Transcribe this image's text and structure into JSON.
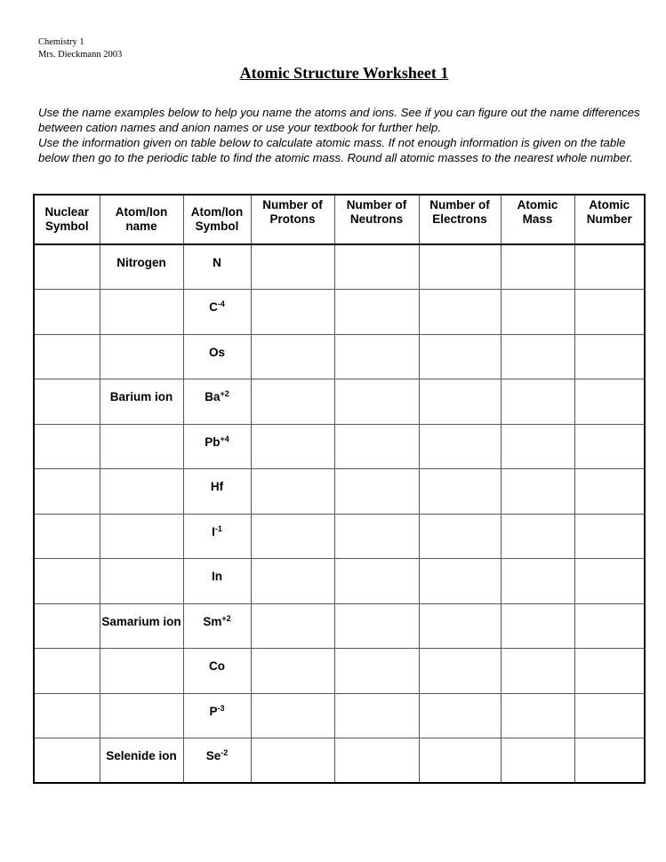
{
  "header": {
    "course": "Chemistry 1",
    "teacher": "Mrs. Dieckmann 2003"
  },
  "title": "Atomic Structure Worksheet 1",
  "instructions": [
    "Use the name examples below to help you name the atoms and ions.  See if you can figure out the name differences between cation names and anion names or use your textbook for further help.",
    "Use the information given on table below  to calculate atomic mass.  If not enough information is given on the table below then go to the periodic table to find the atomic mass.  Round all atomic masses to the nearest whole number."
  ],
  "table": {
    "columns": [
      "Nuclear Symbol",
      "Atom/Ion name",
      "Atom/Ion Symbol",
      "Number of Protons",
      "Number of Neutrons",
      "Number of Electrons",
      "Atomic Mass",
      "Atomic Number"
    ],
    "rows": [
      {
        "name": "Nitrogen",
        "symbol": "N",
        "charge": ""
      },
      {
        "name": "",
        "symbol": "C",
        "charge": "-4"
      },
      {
        "name": "",
        "symbol": "Os",
        "charge": ""
      },
      {
        "name": "Barium ion",
        "symbol": "Ba",
        "charge": "+2"
      },
      {
        "name": "",
        "symbol": "Pb",
        "charge": "+4"
      },
      {
        "name": "",
        "symbol": "Hf",
        "charge": ""
      },
      {
        "name": "",
        "symbol": "I",
        "charge": "-1"
      },
      {
        "name": "",
        "symbol": "In",
        "charge": ""
      },
      {
        "name": "Samarium ion",
        "symbol": "Sm",
        "charge": "+2"
      },
      {
        "name": "",
        "symbol": "Co",
        "charge": ""
      },
      {
        "name": "",
        "symbol": "P",
        "charge": "-3"
      },
      {
        "name": "Selenide ion",
        "symbol": "Se",
        "charge": "-2"
      }
    ]
  }
}
